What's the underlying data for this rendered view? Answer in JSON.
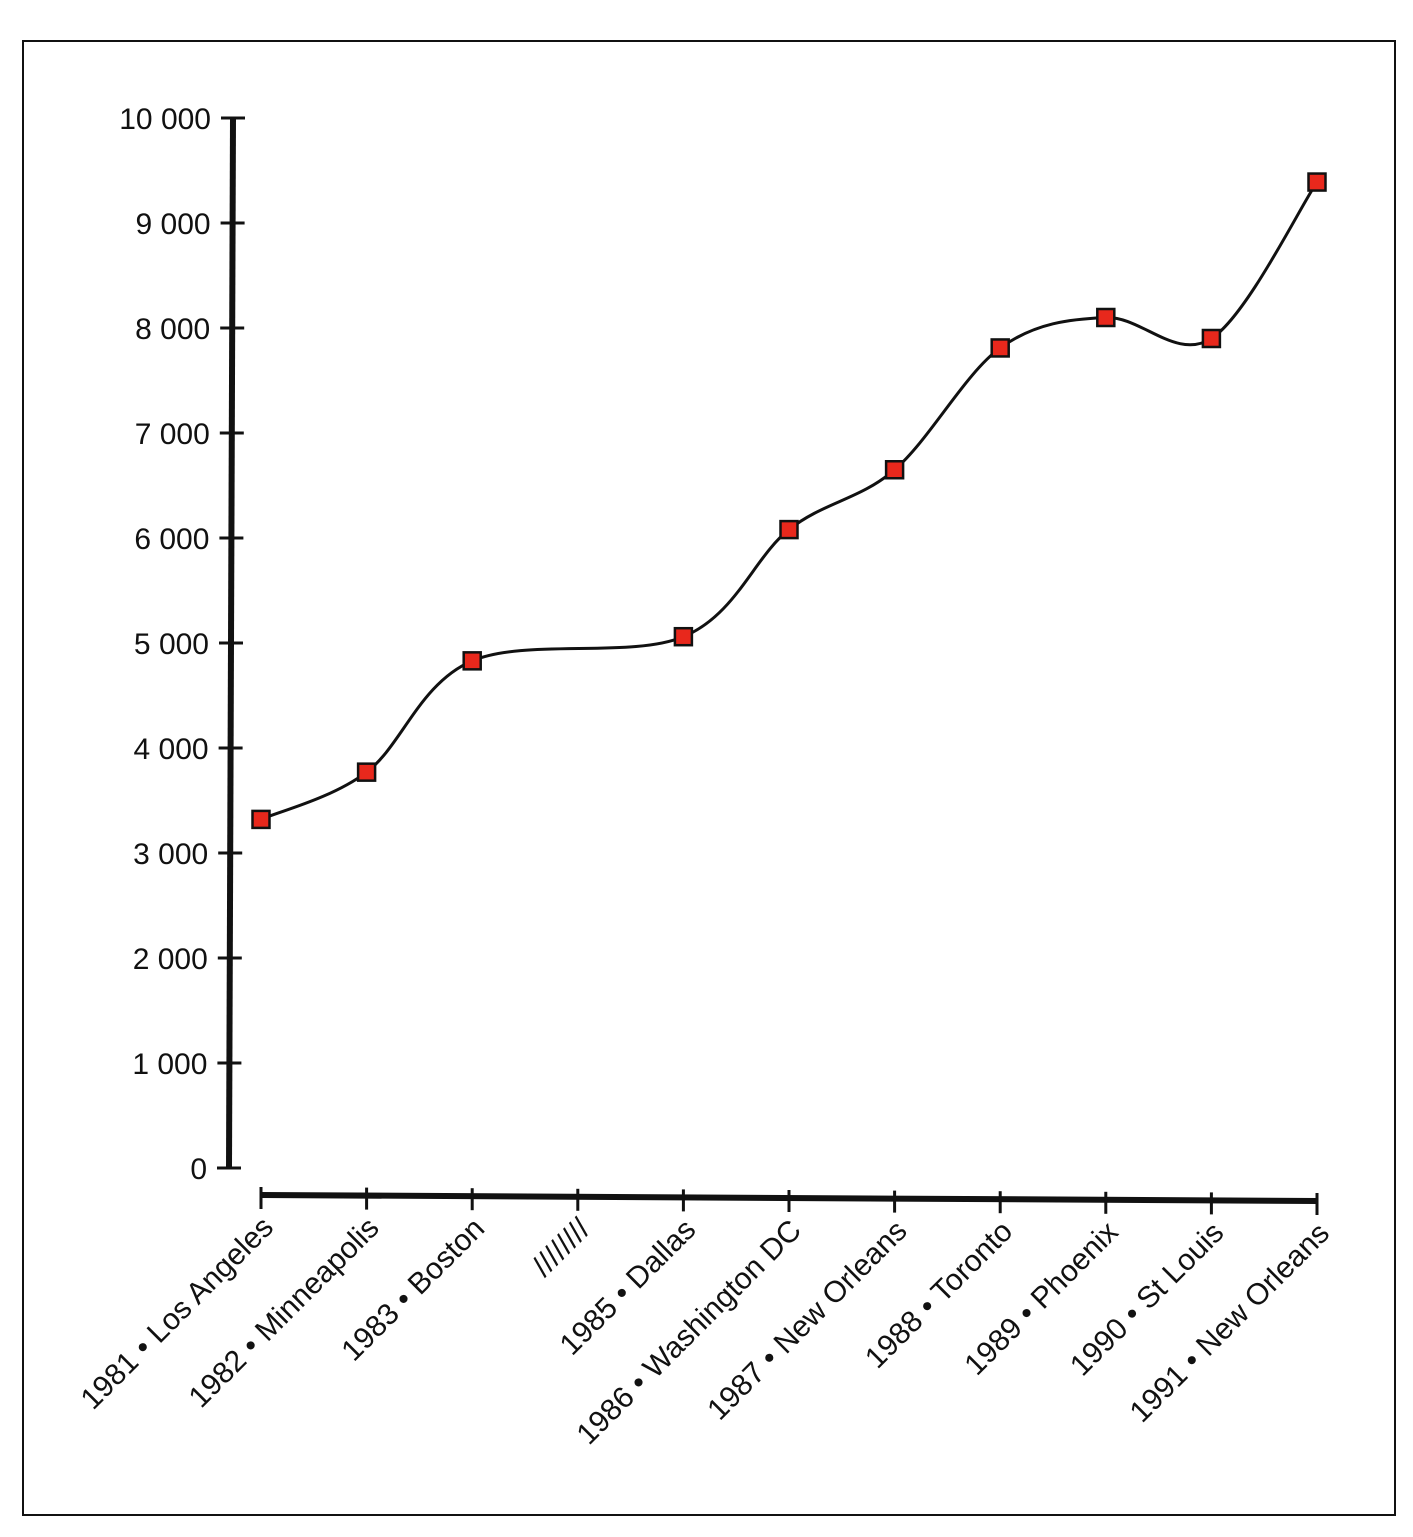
{
  "chart_data": {
    "type": "line",
    "title": "",
    "xlabel": "",
    "ylabel": "",
    "categories": [
      "1981 • Los Angeles",
      "1982 • Minneapolis",
      "1983 • Boston",
      "////////",
      "1985 • Dallas",
      "1986 • Washington DC",
      "1987 • New Orleans",
      "1988 • Toronto",
      "1989 • Phoenix",
      "1990 • St Louis",
      "1991 • New Orleans"
    ],
    "series": [
      {
        "values": [
          3320,
          3770,
          4830,
          null,
          5060,
          6080,
          6650,
          7810,
          8100,
          7900,
          9390
        ]
      }
    ],
    "ylim": [
      0,
      10000
    ],
    "yticks": [
      0,
      1000,
      2000,
      3000,
      4000,
      5000,
      6000,
      7000,
      8000,
      9000,
      10000
    ],
    "ytick_labels": [
      "0",
      "1 000",
      "2 000",
      "3 000",
      "4 000",
      "5 000",
      "6 000",
      "7 000",
      "8 000",
      "9 000",
      "10 000"
    ],
    "grid": false,
    "legend": "none",
    "line_color": "#111111",
    "marker_color": "#e8281c",
    "marker_shape": "square"
  }
}
